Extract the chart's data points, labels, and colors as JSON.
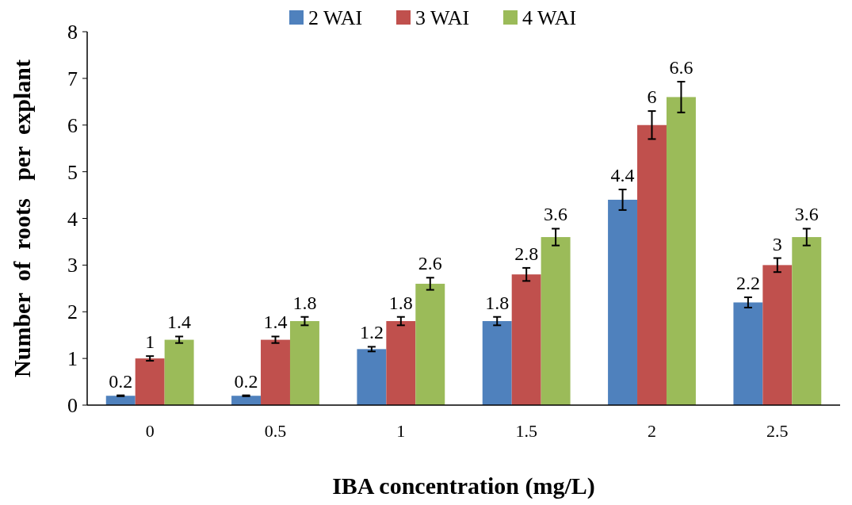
{
  "chart_data": {
    "type": "bar",
    "xlabel": "IBA  concentration (mg/L)",
    "ylabel": "Number  of  roots   per  explant",
    "categories": [
      "0",
      "0.5",
      "1",
      "1.5",
      "2",
      "2.5"
    ],
    "series": [
      {
        "name": "2 WAI",
        "color": "#4f81bd",
        "values": [
          0.2,
          0.2,
          1.2,
          1.8,
          4.4,
          2.2
        ],
        "errors": [
          0.01,
          0.01,
          0.05,
          0.09,
          0.22,
          0.11
        ]
      },
      {
        "name": "3 WAI",
        "color": "#c0504d",
        "values": [
          1,
          1.4,
          1.8,
          2.8,
          6,
          3
        ],
        "errors": [
          0.05,
          0.07,
          0.09,
          0.14,
          0.3,
          0.15
        ]
      },
      {
        "name": "4 WAI",
        "color": "#9bbb59",
        "values": [
          1.4,
          1.8,
          2.6,
          3.6,
          6.6,
          3.6
        ],
        "errors": [
          0.07,
          0.09,
          0.13,
          0.18,
          0.33,
          0.18
        ]
      }
    ],
    "ylim": [
      0,
      8
    ],
    "yticks": [
      0,
      1,
      2,
      3,
      4,
      5,
      6,
      7,
      8
    ],
    "data_labels": true,
    "legend": "top",
    "grid": false
  }
}
